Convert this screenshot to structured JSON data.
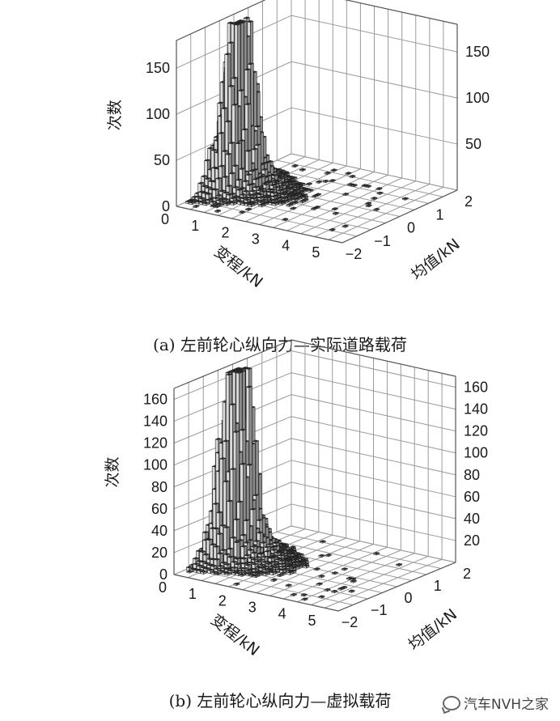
{
  "chart_data": [
    {
      "type": "3d-bar-histogram",
      "caption": "(a) 左前轮心纵向力—实际道路载荷",
      "zlabel": "次数",
      "xlabel": "变程/kN",
      "ylabel": "均值/kN",
      "x_ticks": [
        "0",
        "1",
        "2",
        "3",
        "4",
        "5"
      ],
      "y_ticks": [
        "−2",
        "−1",
        "0",
        "1",
        "2"
      ],
      "z_ticks_left": [
        "0",
        "50",
        "100",
        "150"
      ],
      "z_ticks_right": [
        "50",
        "100",
        "150"
      ],
      "zlim": [
        0,
        180
      ],
      "xlim": [
        0,
        5.5
      ],
      "ylim": [
        -2,
        2
      ],
      "peak": {
        "range": 0.5,
        "mean": -0.3,
        "count": 175
      },
      "shape": "concentrated at small range, decaying with range; near-zero counts scattered at larger range"
    },
    {
      "type": "3d-bar-histogram",
      "caption": "(b) 左前轮心纵向力—虚拟载荷",
      "zlabel": "次数",
      "xlabel": "变程/kN",
      "ylabel": "均值/kN",
      "x_ticks": [
        "0",
        "1",
        "2",
        "3",
        "4",
        "5"
      ],
      "y_ticks": [
        "−2",
        "−1",
        "0",
        "1",
        "2"
      ],
      "z_ticks_left": [
        "0",
        "20",
        "40",
        "60",
        "80",
        "100",
        "120",
        "140",
        "160"
      ],
      "z_ticks_right": [
        "20",
        "40",
        "60",
        "80",
        "100",
        "120",
        "140",
        "160"
      ],
      "zlim": [
        0,
        170
      ],
      "xlim": [
        0,
        5.5
      ],
      "ylim": [
        -2,
        2
      ],
      "peak": {
        "range": 0.5,
        "mean": -0.3,
        "count": 165
      },
      "shape": "concentrated at small range, decaying with range; near-zero counts scattered at larger range"
    }
  ],
  "watermark": {
    "text": "汽车NVH之家",
    "icon": "wechat-icon"
  }
}
